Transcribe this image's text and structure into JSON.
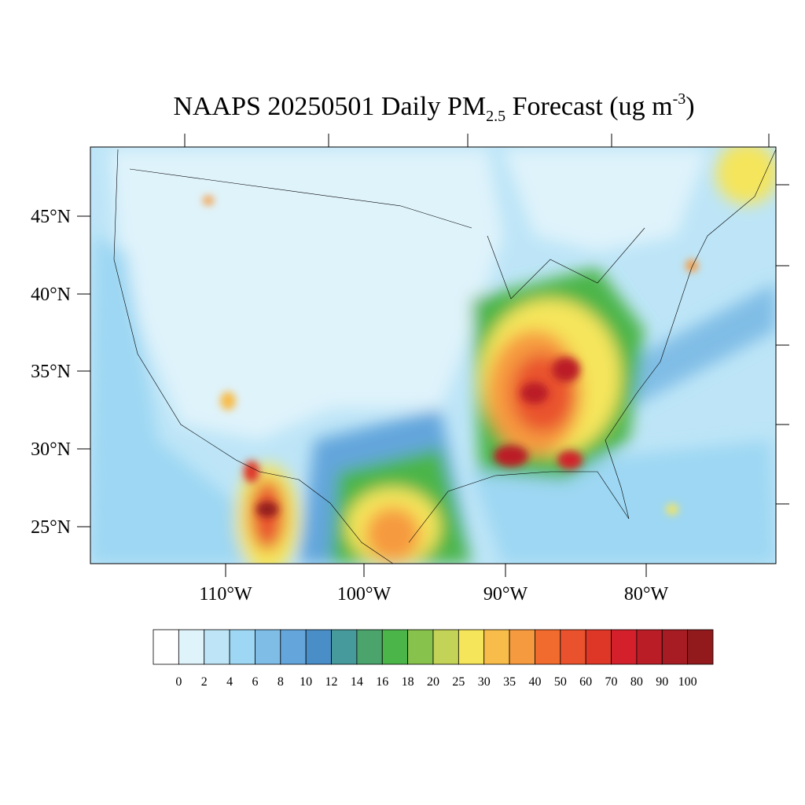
{
  "title": {
    "main": "NAAPS 20250501 Daily PM",
    "subscript": "2.5",
    "rest": " Forecast (ug m",
    "superscript": "-3",
    "close": ")"
  },
  "lat_labels": [
    "45°N",
    "40°N",
    "35°N",
    "30°N",
    "25°N"
  ],
  "lon_labels": [
    "110°W",
    "100°W",
    "90°W",
    "80°W"
  ],
  "colorbar": {
    "colors": [
      "#ffffff",
      "#dff3fb",
      "#bde5f7",
      "#9dd7f3",
      "#80bde6",
      "#64a6dc",
      "#4a8ec8",
      "#479a9c",
      "#4aa46c",
      "#4cb549",
      "#86c24c",
      "#c2d357",
      "#f5e55b",
      "#f8bc4a",
      "#f69a3f",
      "#f26b2e",
      "#e9522d",
      "#de3627",
      "#d3202a",
      "#bb1d27",
      "#a61c22",
      "#921a1d"
    ],
    "labels": [
      0,
      2,
      4,
      6,
      8,
      10,
      12,
      14,
      16,
      18,
      20,
      25,
      30,
      35,
      40,
      50,
      60,
      70,
      80,
      90,
      100
    ]
  }
}
